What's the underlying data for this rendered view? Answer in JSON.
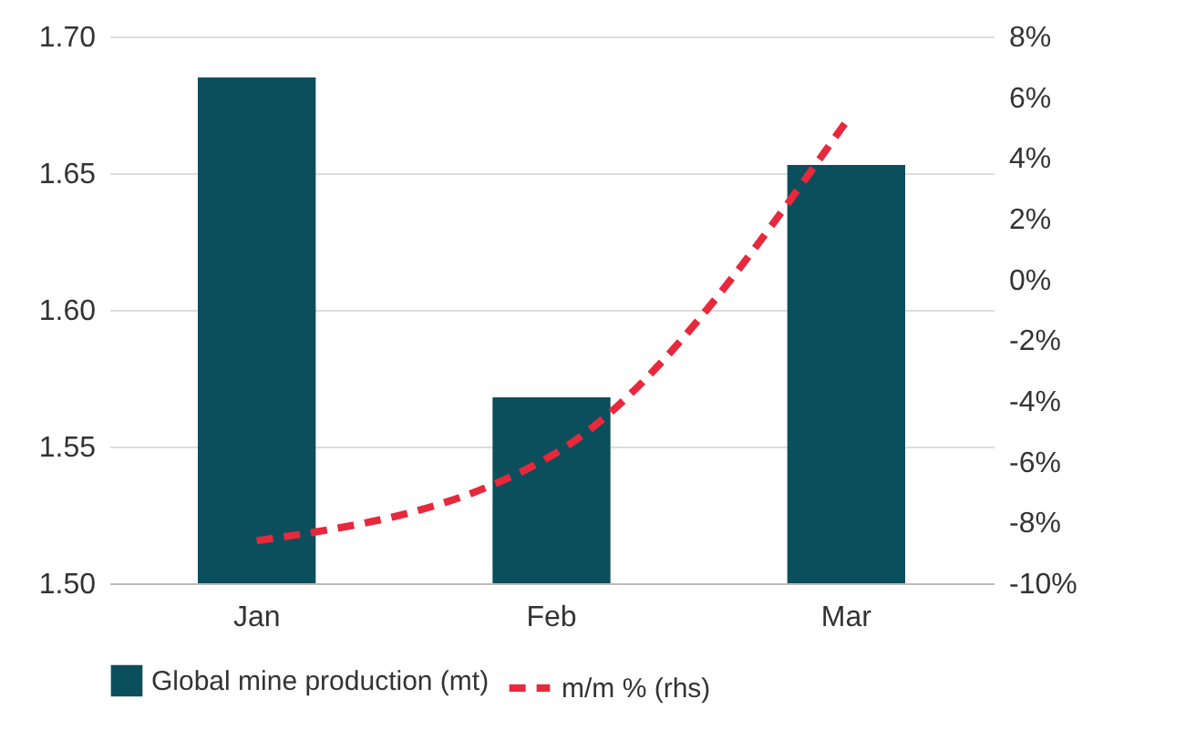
{
  "chart_data": {
    "type": "bar",
    "categories": [
      "Jan",
      "Feb",
      "Mar"
    ],
    "series": [
      {
        "name": "Global mine production (mt)",
        "color": "#0b4f5c",
        "values": [
          1.685,
          1.568,
          1.653
        ]
      },
      {
        "name": "m/m % (rhs)",
        "type": "line",
        "axis": "y2",
        "color": "#e8283c",
        "line_style": "dashed",
        "values": [
          -8.6,
          -5.8,
          5.2
        ]
      }
    ],
    "ylim": [
      1.5,
      1.7
    ],
    "yticks": [
      {
        "value": 1.5,
        "label": "1.50"
      },
      {
        "value": 1.55,
        "label": "1.55"
      },
      {
        "value": 1.6,
        "label": "1.60"
      },
      {
        "value": 1.65,
        "label": "1.65"
      },
      {
        "value": 1.7,
        "label": "1.70"
      }
    ],
    "y2lim": [
      -10,
      8
    ],
    "y2ticks": [
      {
        "value": -10,
        "label": "-10%"
      },
      {
        "value": -8,
        "label": "-8%"
      },
      {
        "value": -6,
        "label": "-6%"
      },
      {
        "value": -4,
        "label": "-4%"
      },
      {
        "value": -2,
        "label": "-2%"
      },
      {
        "value": 0,
        "label": "0%"
      },
      {
        "value": 2,
        "label": "2%"
      },
      {
        "value": 4,
        "label": "4%"
      },
      {
        "value": 6,
        "label": "6%"
      },
      {
        "value": 8,
        "label": "8%"
      }
    ],
    "grid": "y",
    "legend": "bottom"
  }
}
